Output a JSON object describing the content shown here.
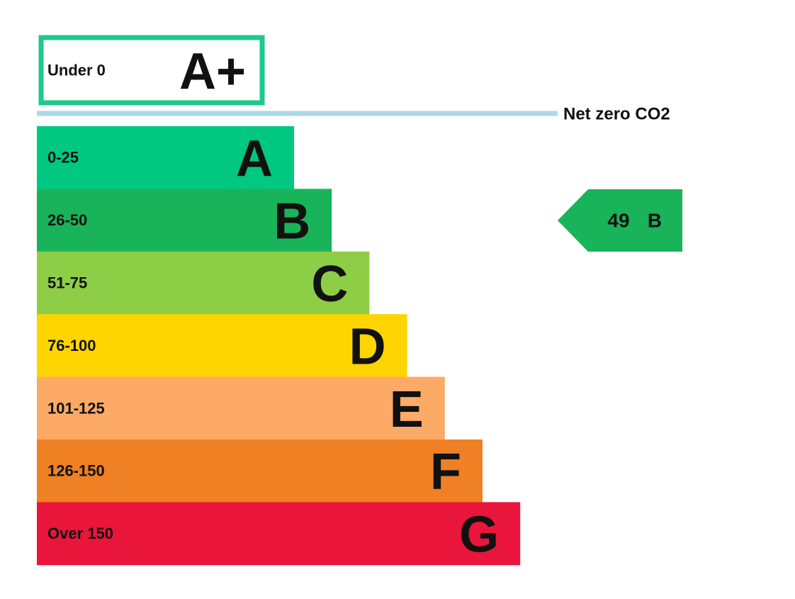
{
  "top_band": {
    "range": "Under 0",
    "letter": "A+",
    "color": "#1ec98a"
  },
  "net_zero": {
    "label": "Net zero CO2",
    "color": "#add8e6"
  },
  "bands": [
    {
      "range": "0-25",
      "letter": "A",
      "color": "#00c781"
    },
    {
      "range": "26-50",
      "letter": "B",
      "color": "#19b459"
    },
    {
      "range": "51-75",
      "letter": "C",
      "color": "#8dce46"
    },
    {
      "range": "76-100",
      "letter": "D",
      "color": "#ffd500"
    },
    {
      "range": "101-125",
      "letter": "E",
      "color": "#fcaa65"
    },
    {
      "range": "126-150",
      "letter": "F",
      "color": "#ef8023"
    },
    {
      "range": "Over 150",
      "letter": "G",
      "color": "#e9153b"
    }
  ],
  "indicator": {
    "value": 49,
    "letter": "B",
    "color": "#19b459"
  }
}
